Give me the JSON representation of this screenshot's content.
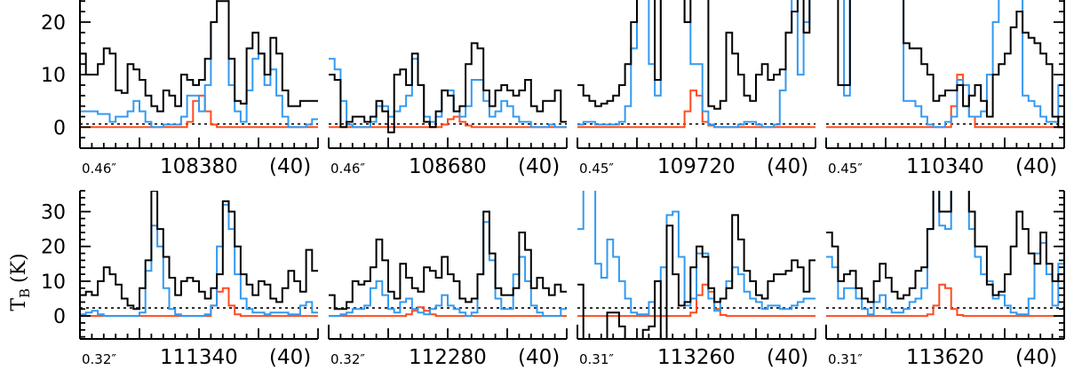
{
  "chart_data": {
    "type": "line",
    "style": "step-histogram spectra, 2x4 panel grid",
    "ylabel": "T",
    "ylabel_subscript": "B",
    "ylabel_unit": "(K)",
    "colors": {
      "black": "#000000",
      "blue": "#3399f0",
      "red": "#ff4b1f",
      "dotted": "#000000"
    },
    "rows": [
      {
        "ylim": [
          -4,
          24.2
        ],
        "yticks": [
          0,
          10,
          20
        ],
        "minor_step": 2,
        "dotted_level": 0.6
      },
      {
        "ylim": [
          -6.6,
          36
        ],
        "yticks": [
          0,
          10,
          20,
          30
        ],
        "minor_step": 2,
        "dotted_level": 2.3
      }
    ],
    "x_major_step": 10,
    "x_minor_step": 2,
    "panels": [
      {
        "row": 0,
        "freq": "108380",
        "width": "(40)",
        "beam": "0.46″",
        "center": 108380,
        "black": [
          14,
          10,
          10,
          12,
          15,
          14,
          7,
          6.5,
          12,
          11,
          9,
          6,
          4,
          3,
          7,
          6,
          4,
          10,
          9,
          8,
          9,
          13,
          20,
          24,
          24,
          13,
          5,
          4.5,
          15,
          18,
          14,
          10,
          17,
          14,
          7,
          4,
          4,
          5,
          5,
          5
        ],
        "blue": [
          3,
          3,
          3,
          2.5,
          2.5,
          1,
          2,
          2,
          3,
          5,
          3,
          1,
          0,
          0,
          0.5,
          0.5,
          0.5,
          2,
          6,
          6,
          3,
          8,
          20,
          26,
          26,
          8,
          3,
          1,
          7,
          13,
          14,
          8,
          11,
          6,
          2,
          0,
          0,
          0,
          0.5,
          1.5
        ],
        "red": [
          0,
          0,
          0,
          0,
          0,
          0,
          0,
          0,
          0,
          0,
          0,
          0,
          0,
          0,
          0,
          0,
          0,
          0,
          1,
          5,
          6,
          3,
          0.5,
          0,
          0,
          0,
          0,
          0,
          0,
          0,
          0,
          0,
          0,
          0,
          0,
          0,
          0,
          0,
          0,
          0
        ]
      },
      {
        "row": 0,
        "freq": "108680",
        "width": "(40)",
        "beam": "0.46″",
        "center": 108680,
        "black": [
          10,
          9,
          0,
          1,
          2,
          2,
          1,
          2,
          5,
          3,
          -1,
          10,
          11,
          8,
          14,
          8,
          1,
          0,
          3,
          7,
          6,
          3,
          4,
          12,
          16,
          15,
          7,
          4,
          7,
          8,
          7,
          6,
          7,
          9,
          4,
          3,
          5,
          5,
          7,
          1
        ],
        "blue": [
          13,
          11,
          5,
          0.5,
          0,
          0,
          0,
          1,
          4,
          4,
          2,
          3,
          4,
          6,
          13,
          8,
          2,
          1,
          2,
          7,
          7,
          3,
          2,
          4,
          9,
          9,
          5,
          2,
          3,
          5,
          4,
          2,
          1,
          1,
          0,
          0,
          0,
          0.5,
          0,
          0
        ],
        "red": [
          0,
          0,
          0,
          0,
          0,
          0,
          0,
          0,
          0,
          0,
          0,
          0,
          0,
          0,
          0,
          0,
          0,
          0,
          0,
          0.5,
          1.5,
          2,
          1,
          0.3,
          0,
          0,
          0,
          0,
          0,
          0,
          0,
          0,
          0,
          0,
          0,
          0,
          0,
          0,
          0,
          0
        ]
      },
      {
        "row": 0,
        "freq": "109720",
        "width": "(40)",
        "beam": "0.45″",
        "center": 109720,
        "black": [
          8,
          6,
          5,
          4,
          4.5,
          5,
          6,
          8,
          12,
          20,
          30,
          30,
          30,
          9,
          30,
          30,
          30,
          25,
          20,
          30,
          30,
          30,
          4,
          3.5,
          5,
          18,
          14,
          10,
          6,
          5,
          10,
          12,
          9,
          10,
          11,
          18,
          22,
          30,
          18,
          30
        ],
        "blue": [
          0.5,
          1,
          1,
          0.5,
          0.5,
          0.5,
          0.5,
          1,
          4,
          15,
          30,
          30,
          12,
          6,
          30,
          30,
          30,
          30,
          20,
          12,
          12,
          3,
          0.5,
          0,
          0,
          0,
          0,
          0.5,
          1,
          1,
          0.5,
          0,
          0,
          0.5,
          7,
          18,
          30,
          10,
          20,
          30
        ],
        "red": [
          0,
          0,
          0,
          0,
          0,
          0,
          0,
          0,
          0,
          0,
          0,
          0,
          0,
          0,
          0,
          0,
          0,
          0,
          3,
          7,
          6,
          1,
          0.3,
          0,
          0,
          0,
          0,
          0,
          0,
          0,
          0,
          0,
          0,
          0,
          0,
          0,
          0,
          0,
          0,
          0
        ]
      },
      {
        "row": 0,
        "freq": "110340",
        "width": "(40)",
        "beam": "0.45″",
        "center": 110340,
        "black": [
          30,
          30,
          8,
          8,
          30,
          30,
          30,
          30,
          30,
          30,
          30,
          30,
          30,
          16,
          15,
          15,
          12,
          10,
          5,
          6,
          7,
          7,
          8,
          4,
          6,
          8,
          5,
          2,
          10,
          12,
          14,
          19,
          22,
          18,
          17,
          16,
          14,
          12,
          2,
          0
        ],
        "blue": [
          30,
          30,
          30,
          6,
          30,
          30,
          30,
          30,
          30,
          30,
          30,
          30,
          30,
          5,
          5,
          4,
          2,
          0.5,
          0,
          0,
          1,
          2,
          9,
          8,
          2,
          2,
          3,
          10,
          20,
          30,
          30,
          30,
          30,
          6,
          5,
          4,
          2,
          1,
          1,
          8
        ],
        "red": [
          0,
          0,
          0,
          0,
          0,
          0,
          0,
          0,
          0,
          0,
          0,
          0,
          0,
          0,
          0,
          0,
          0,
          0,
          0,
          0,
          0,
          4,
          10,
          8,
          2,
          0,
          0,
          0,
          0,
          0,
          0,
          0,
          0,
          0,
          0,
          0,
          0,
          0,
          0,
          0
        ]
      },
      {
        "row": 1,
        "freq": "111340",
        "width": "(40)",
        "beam": "0.32″",
        "center": 111340,
        "black": [
          6,
          7,
          6,
          10,
          14,
          12,
          9,
          5,
          3,
          2,
          8,
          16,
          36,
          25,
          17,
          11,
          6,
          10,
          11,
          10,
          7,
          5,
          8,
          12,
          33,
          30,
          20,
          12,
          9,
          6,
          10,
          9,
          5,
          4,
          8,
          13,
          10,
          7,
          19,
          13
        ],
        "blue": [
          0.5,
          1,
          1.5,
          0.5,
          0,
          0,
          0,
          0,
          0,
          0,
          1,
          13,
          26,
          20,
          8,
          2,
          0.5,
          0,
          0,
          0,
          0,
          0.5,
          3,
          20,
          32,
          25,
          12,
          5,
          2,
          1,
          1,
          0.5,
          1,
          1,
          1,
          0.5,
          0.5,
          3,
          4,
          1
        ],
        "red": [
          0,
          0,
          0,
          0,
          0,
          0,
          0,
          0,
          0,
          0,
          0,
          0,
          0,
          0,
          0,
          0,
          0,
          0,
          0,
          0,
          0,
          0,
          3,
          7,
          8,
          3,
          0.5,
          0,
          0,
          0,
          0,
          0,
          0,
          0,
          0,
          0,
          0,
          0,
          0,
          0
        ]
      },
      {
        "row": 1,
        "freq": "112280",
        "width": "(40)",
        "beam": "0.32″",
        "center": 112280,
        "black": [
          6,
          2,
          2,
          4,
          10,
          9,
          10,
          14,
          22,
          16,
          7,
          5,
          15,
          11,
          8,
          7,
          14,
          13,
          11,
          17,
          12,
          10,
          5,
          4,
          5,
          12,
          30,
          18,
          8,
          6,
          6,
          8,
          24,
          19,
          8,
          11,
          8,
          6,
          9,
          7
        ],
        "blue": [
          0,
          0,
          0.5,
          1,
          2,
          2,
          3,
          8,
          10,
          6,
          2,
          1,
          4,
          5,
          2,
          1,
          0.5,
          2,
          3,
          6,
          3,
          2,
          1,
          0,
          1,
          12,
          27,
          16,
          5,
          2,
          2,
          12,
          17,
          10,
          3,
          1,
          0,
          0,
          0,
          2
        ],
        "red": [
          0,
          0,
          0,
          0,
          0,
          0,
          0,
          0,
          0,
          0,
          0,
          0,
          0,
          0.5,
          1.5,
          2.5,
          1.5,
          0.5,
          0,
          0,
          0,
          0,
          0,
          0,
          0,
          0,
          0,
          0,
          0,
          0,
          0,
          0,
          0,
          0,
          0,
          0,
          0,
          0,
          0,
          0
        ]
      },
      {
        "row": 1,
        "freq": "113260",
        "width": "(40)",
        "beam": "0.31″",
        "center": 113260,
        "black": [
          9,
          -7,
          -7,
          -7,
          -7,
          1,
          1,
          -3,
          -7,
          -7,
          -7,
          -4,
          -3,
          10,
          -7,
          26,
          12,
          3,
          4,
          14,
          20,
          17,
          8,
          4,
          5,
          8,
          29,
          22,
          13,
          10,
          6,
          5,
          10,
          12,
          12,
          13,
          16,
          14,
          7,
          16
        ],
        "blue": [
          25,
          40,
          40,
          15,
          11,
          22,
          17,
          10,
          5,
          1,
          0.5,
          0.5,
          4,
          10,
          14,
          29,
          30,
          17,
          3,
          5,
          18,
          18,
          5,
          1.5,
          5,
          10,
          14,
          12,
          7,
          5,
          4,
          2,
          3,
          3,
          2,
          2,
          3,
          4,
          5,
          5
        ],
        "red": [
          0,
          0,
          0,
          0,
          0,
          0,
          0,
          0,
          0,
          0,
          0,
          0,
          0,
          0,
          0,
          0,
          0,
          0,
          0,
          1,
          6,
          9,
          7,
          2,
          0.3,
          0,
          0,
          0,
          0,
          0,
          0,
          0,
          0,
          0,
          0,
          0,
          0,
          0,
          0,
          0
        ]
      },
      {
        "row": 1,
        "freq": "113620",
        "width": "(40)",
        "beam": "0.31″",
        "center": 113620,
        "black": [
          24,
          20,
          10,
          12,
          13,
          8,
          5,
          4,
          10,
          15,
          11,
          7,
          5,
          6,
          8,
          13,
          14,
          25,
          40,
          30,
          30,
          40,
          40,
          40,
          30,
          20,
          20,
          9,
          6,
          7,
          12,
          20,
          30,
          25,
          18,
          15,
          24,
          15,
          10,
          12
        ],
        "blue": [
          17,
          14,
          5,
          8,
          8,
          5,
          2,
          0.5,
          4,
          6,
          2,
          1,
          1,
          2,
          4,
          5,
          8,
          25,
          40,
          26,
          25,
          40,
          40,
          40,
          25,
          17,
          12,
          10,
          5,
          6,
          3,
          1,
          0.5,
          0.5,
          5,
          18,
          21,
          12,
          3,
          15
        ],
        "red": [
          0,
          0,
          0,
          0,
          0,
          0,
          0,
          0,
          0,
          0,
          0,
          0,
          0,
          0,
          0,
          0,
          0,
          0.5,
          3,
          9,
          8,
          2,
          0.3,
          0,
          0,
          0,
          0,
          0,
          0,
          0,
          0,
          0,
          0,
          0,
          0,
          0,
          0,
          0,
          0,
          0
        ]
      }
    ]
  }
}
